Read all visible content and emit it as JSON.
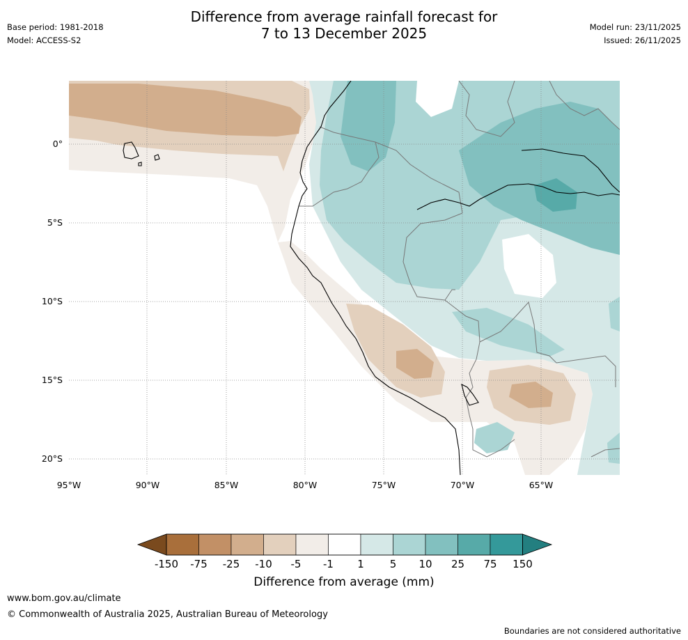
{
  "title_line1": "Difference from average rainfall forecast for",
  "title_line2": "7 to 13 December 2025",
  "base_period": "Base period: 1981-2018",
  "model": "Model: ACCESS-S2",
  "model_run": "Model run: 23/11/2025",
  "issued": "Issued: 26/11/2025",
  "lat_labels": [
    "0°",
    "5°S",
    "10°S",
    "15°S",
    "20°S"
  ],
  "lon_labels": [
    "95°W",
    "90°W",
    "85°W",
    "80°W",
    "75°W",
    "70°W",
    "65°W"
  ],
  "colorbar": {
    "ticks": [
      "-150",
      "-75",
      "-25",
      "-10",
      "-5",
      "-1",
      "1",
      "5",
      "10",
      "25",
      "75",
      "150"
    ],
    "colors": [
      "#7a4a1e",
      "#a96f3b",
      "#c29066",
      "#d2ae8d",
      "#e3d0bd",
      "#f2ede8",
      "#ffffff",
      "#d5e8e7",
      "#abd5d4",
      "#82c0bf",
      "#57aaa8",
      "#34999a",
      "#237f80"
    ],
    "title": "Difference from average (mm)"
  },
  "footer_url": "www.bom.gov.au/climate",
  "footer_copyright": "© Commonwealth of Australia 2025, Australian Bureau of Meteorology",
  "disclaimer": "Boundaries are not considered authoritative"
}
